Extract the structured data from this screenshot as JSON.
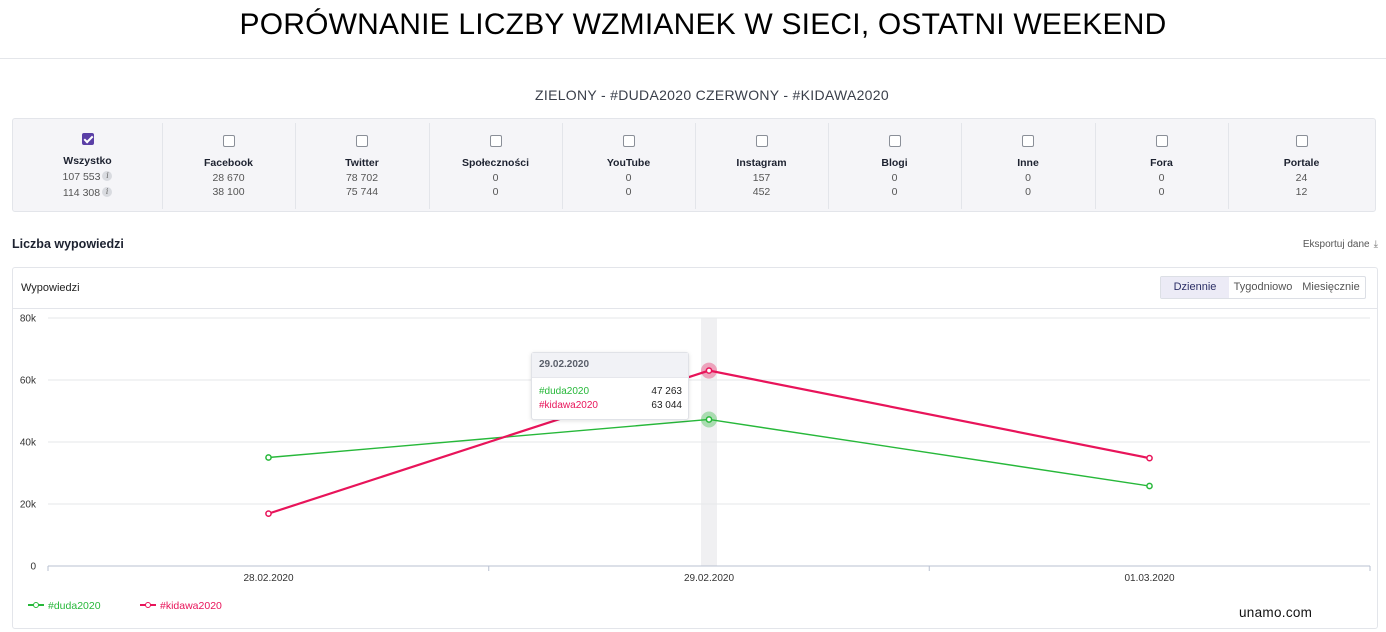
{
  "page": {
    "title": "PORÓWNANIE LICZBY WZMIANEK W SIECI, OSTATNI WEEKEND",
    "subtitle": "ZIELONY - #DUDA2020 CZERWONY - #KIDAWA2020"
  },
  "channels": [
    {
      "name": "Wszystko",
      "v1": "107 553",
      "v2": "114 308",
      "checked": true
    },
    {
      "name": "Facebook",
      "v1": "28 670",
      "v2": "38 100",
      "checked": false
    },
    {
      "name": "Twitter",
      "v1": "78 702",
      "v2": "75 744",
      "checked": false
    },
    {
      "name": "Społeczności",
      "v1": "0",
      "v2": "0",
      "checked": false
    },
    {
      "name": "YouTube",
      "v1": "0",
      "v2": "0",
      "checked": false
    },
    {
      "name": "Instagram",
      "v1": "157",
      "v2": "452",
      "checked": false
    },
    {
      "name": "Blogi",
      "v1": "0",
      "v2": "0",
      "checked": false
    },
    {
      "name": "Inne",
      "v1": "0",
      "v2": "0",
      "checked": false
    },
    {
      "name": "Fora",
      "v1": "0",
      "v2": "0",
      "checked": false
    },
    {
      "name": "Portale",
      "v1": "24",
      "v2": "12",
      "checked": false
    }
  ],
  "info_icon": {
    "glyph": "i",
    "icon": "info-icon"
  },
  "section": {
    "title": "Liczba wypowiedzi",
    "export_label": "Eksportuj dane",
    "export_icon": "download-icon"
  },
  "chart_panel": {
    "label": "Wypowiedzi",
    "period_options": [
      "Dziennie",
      "Tygodniowo",
      "Miesięcznie"
    ],
    "active_period": "Dziennie"
  },
  "tooltip": {
    "date": "29.02.2020",
    "rows": [
      {
        "name": "#duda2020",
        "value": "47 263"
      },
      {
        "name": "#kidawa2020",
        "value": "63 044"
      }
    ]
  },
  "chart_data": {
    "type": "line",
    "categories": [
      "28.02.2020",
      "29.02.2020",
      "01.03.2020"
    ],
    "series": [
      {
        "name": "#duda2020",
        "color": "#27b83a",
        "values": [
          35000,
          47263,
          25800
        ]
      },
      {
        "name": "#kidawa2020",
        "color": "#e8145a",
        "values": [
          16900,
          63044,
          34800
        ]
      }
    ],
    "ylim": [
      0,
      80000
    ],
    "yticks": [
      0,
      20000,
      40000,
      60000,
      80000
    ],
    "ytick_labels": [
      "0",
      "20k",
      "40k",
      "60k",
      "80k"
    ],
    "grid": true,
    "legend": "bottom-left",
    "highlight_index": 1,
    "title": "",
    "xlabel": "",
    "ylabel": ""
  },
  "colors": {
    "accent": "#5a3fa6",
    "duda": "#27b83a",
    "kidawa": "#e8145a"
  },
  "watermark": "unamo.com"
}
